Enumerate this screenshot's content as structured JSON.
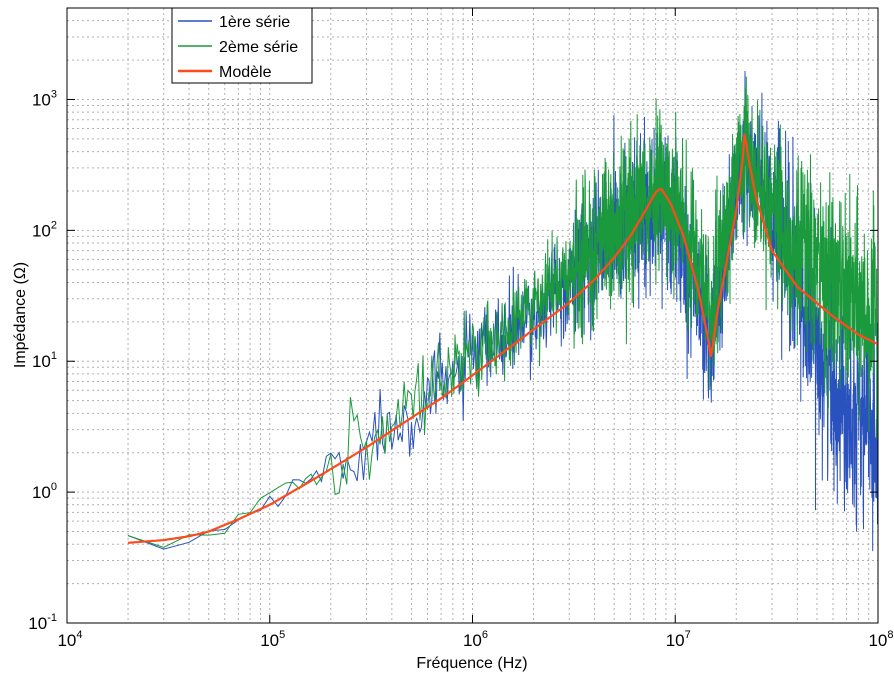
{
  "chart_data": {
    "type": "line",
    "xscale": "log",
    "yscale": "log",
    "xlim": [
      10000,
      100000000
    ],
    "ylim": [
      0.1,
      5000
    ],
    "grid": true,
    "legend_position": "top-left",
    "xlabel": "Fréquence (Hz)",
    "ylabel": "Impédance (Ω)",
    "x_ticks": [
      {
        "value": 10000,
        "base": "10",
        "exp": "4"
      },
      {
        "value": 100000,
        "base": "10",
        "exp": "5"
      },
      {
        "value": 1000000,
        "base": "10",
        "exp": "6"
      },
      {
        "value": 10000000,
        "base": "10",
        "exp": "7"
      },
      {
        "value": 100000000,
        "base": "10",
        "exp": "8"
      }
    ],
    "y_ticks": [
      {
        "value": 0.1,
        "base": "10",
        "exp": "-1"
      },
      {
        "value": 1,
        "base": "10",
        "exp": "0"
      },
      {
        "value": 10,
        "base": "10",
        "exp": "1"
      },
      {
        "value": 100,
        "base": "10",
        "exp": "2"
      },
      {
        "value": 1000,
        "base": "10",
        "exp": "3"
      }
    ],
    "series": [
      {
        "name": "1ère série",
        "color": "#2a52be",
        "noisy": true,
        "x": [
          20000,
          40000,
          60000,
          80000,
          100000,
          150000,
          200000,
          300000,
          500000,
          800000,
          1000000,
          2000000,
          3000000,
          4000000,
          5000000,
          6000000,
          8000000,
          10000000,
          12000000,
          15000000,
          18000000,
          22000000,
          30000000,
          40000000,
          60000000,
          100000000
        ],
        "y": [
          0.41,
          0.4,
          0.52,
          0.68,
          0.85,
          1.2,
          1.6,
          2.4,
          4.2,
          7.5,
          10,
          22,
          40,
          70,
          90,
          120,
          160,
          110,
          50,
          12,
          90,
          350,
          150,
          40,
          6,
          3
        ]
      },
      {
        "name": "2ème série",
        "color": "#1a9a3c",
        "noisy": true,
        "x": [
          20000,
          40000,
          60000,
          80000,
          100000,
          150000,
          200000,
          300000,
          500000,
          800000,
          1000000,
          2000000,
          3000000,
          4000000,
          5000000,
          6000000,
          8000000,
          10000000,
          12000000,
          15000000,
          18000000,
          22000000,
          30000000,
          40000000,
          60000000,
          100000000
        ],
        "y": [
          0.4,
          0.42,
          0.58,
          0.72,
          0.88,
          1.25,
          1.7,
          2.5,
          4.5,
          8,
          11,
          25,
          45,
          80,
          100,
          140,
          200,
          150,
          80,
          25,
          120,
          450,
          160,
          70,
          35,
          20
        ]
      },
      {
        "name": "Modèle",
        "color": "#ff4a1c",
        "noisy": false,
        "x": [
          20000,
          30000,
          40000,
          50000,
          70000,
          100000,
          150000,
          200000,
          300000,
          500000,
          700000,
          1000000,
          1500000,
          2000000,
          3000000,
          4000000,
          5000000,
          6000000,
          7000000,
          8000000,
          8500000,
          9500000,
          11000000,
          13000000,
          14500000,
          15000000,
          16000000,
          18000000,
          20000000,
          21500000,
          22000000,
          23000000,
          25000000,
          30000000,
          40000000,
          60000000,
          80000000,
          100000000
        ],
        "y": [
          0.41,
          0.43,
          0.46,
          0.5,
          0.62,
          0.8,
          1.15,
          1.5,
          2.2,
          3.7,
          5.2,
          7.8,
          12.5,
          17.5,
          28,
          42,
          62,
          90,
          135,
          195,
          210,
          160,
          90,
          35,
          15,
          10.5,
          22,
          60,
          140,
          350,
          560,
          350,
          180,
          70,
          37,
          22,
          16,
          13.5
        ]
      }
    ]
  }
}
